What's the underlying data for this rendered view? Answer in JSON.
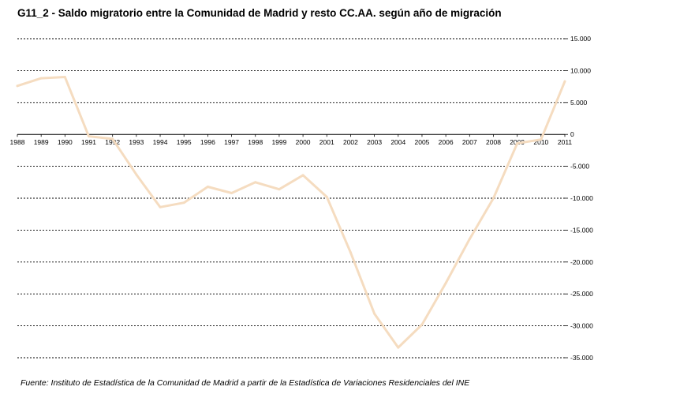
{
  "chart_data": {
    "type": "line",
    "title": "G11_2 - Saldo migratorio entre la Comunidad de Madrid y resto CC.AA. según año de migración",
    "source": "Fuente: Instituto de Estadística de la Comunidad de Madrid a partir de la Estadística de Variaciones Residenciales del INE",
    "categories": [
      "1988",
      "1989",
      "1990",
      "1991",
      "1992",
      "1993",
      "1994",
      "1995",
      "1996",
      "1997",
      "1998",
      "1999",
      "2000",
      "2001",
      "2002",
      "2003",
      "2004",
      "2005",
      "2006",
      "2007",
      "2008",
      "2009",
      "2010",
      "2011"
    ],
    "series": [
      {
        "name": "Saldo migratorio",
        "color": "#f5dcc0",
        "values": [
          7600,
          8800,
          9000,
          -300,
          -700,
          -6300,
          -11400,
          -10700,
          -8200,
          -9200,
          -7500,
          -8600,
          -6400,
          -9800,
          -18500,
          -28100,
          -33400,
          -29800,
          -23300,
          -16400,
          -10000,
          -1400,
          -800,
          8300
        ]
      }
    ],
    "y_ticks": [
      15000,
      10000,
      5000,
      0,
      -5000,
      -10000,
      -15000,
      -20000,
      -25000,
      -30000,
      -35000
    ],
    "y_tick_labels": [
      "15.000",
      "10.000",
      "5.000",
      "0",
      "-5.000",
      "-10.000",
      "-15.000",
      "-20.000",
      "-25.000",
      "-30.000",
      "-35.000"
    ],
    "ylim": [
      -35000,
      15000
    ],
    "grid": true,
    "xlabel": "",
    "ylabel": ""
  }
}
